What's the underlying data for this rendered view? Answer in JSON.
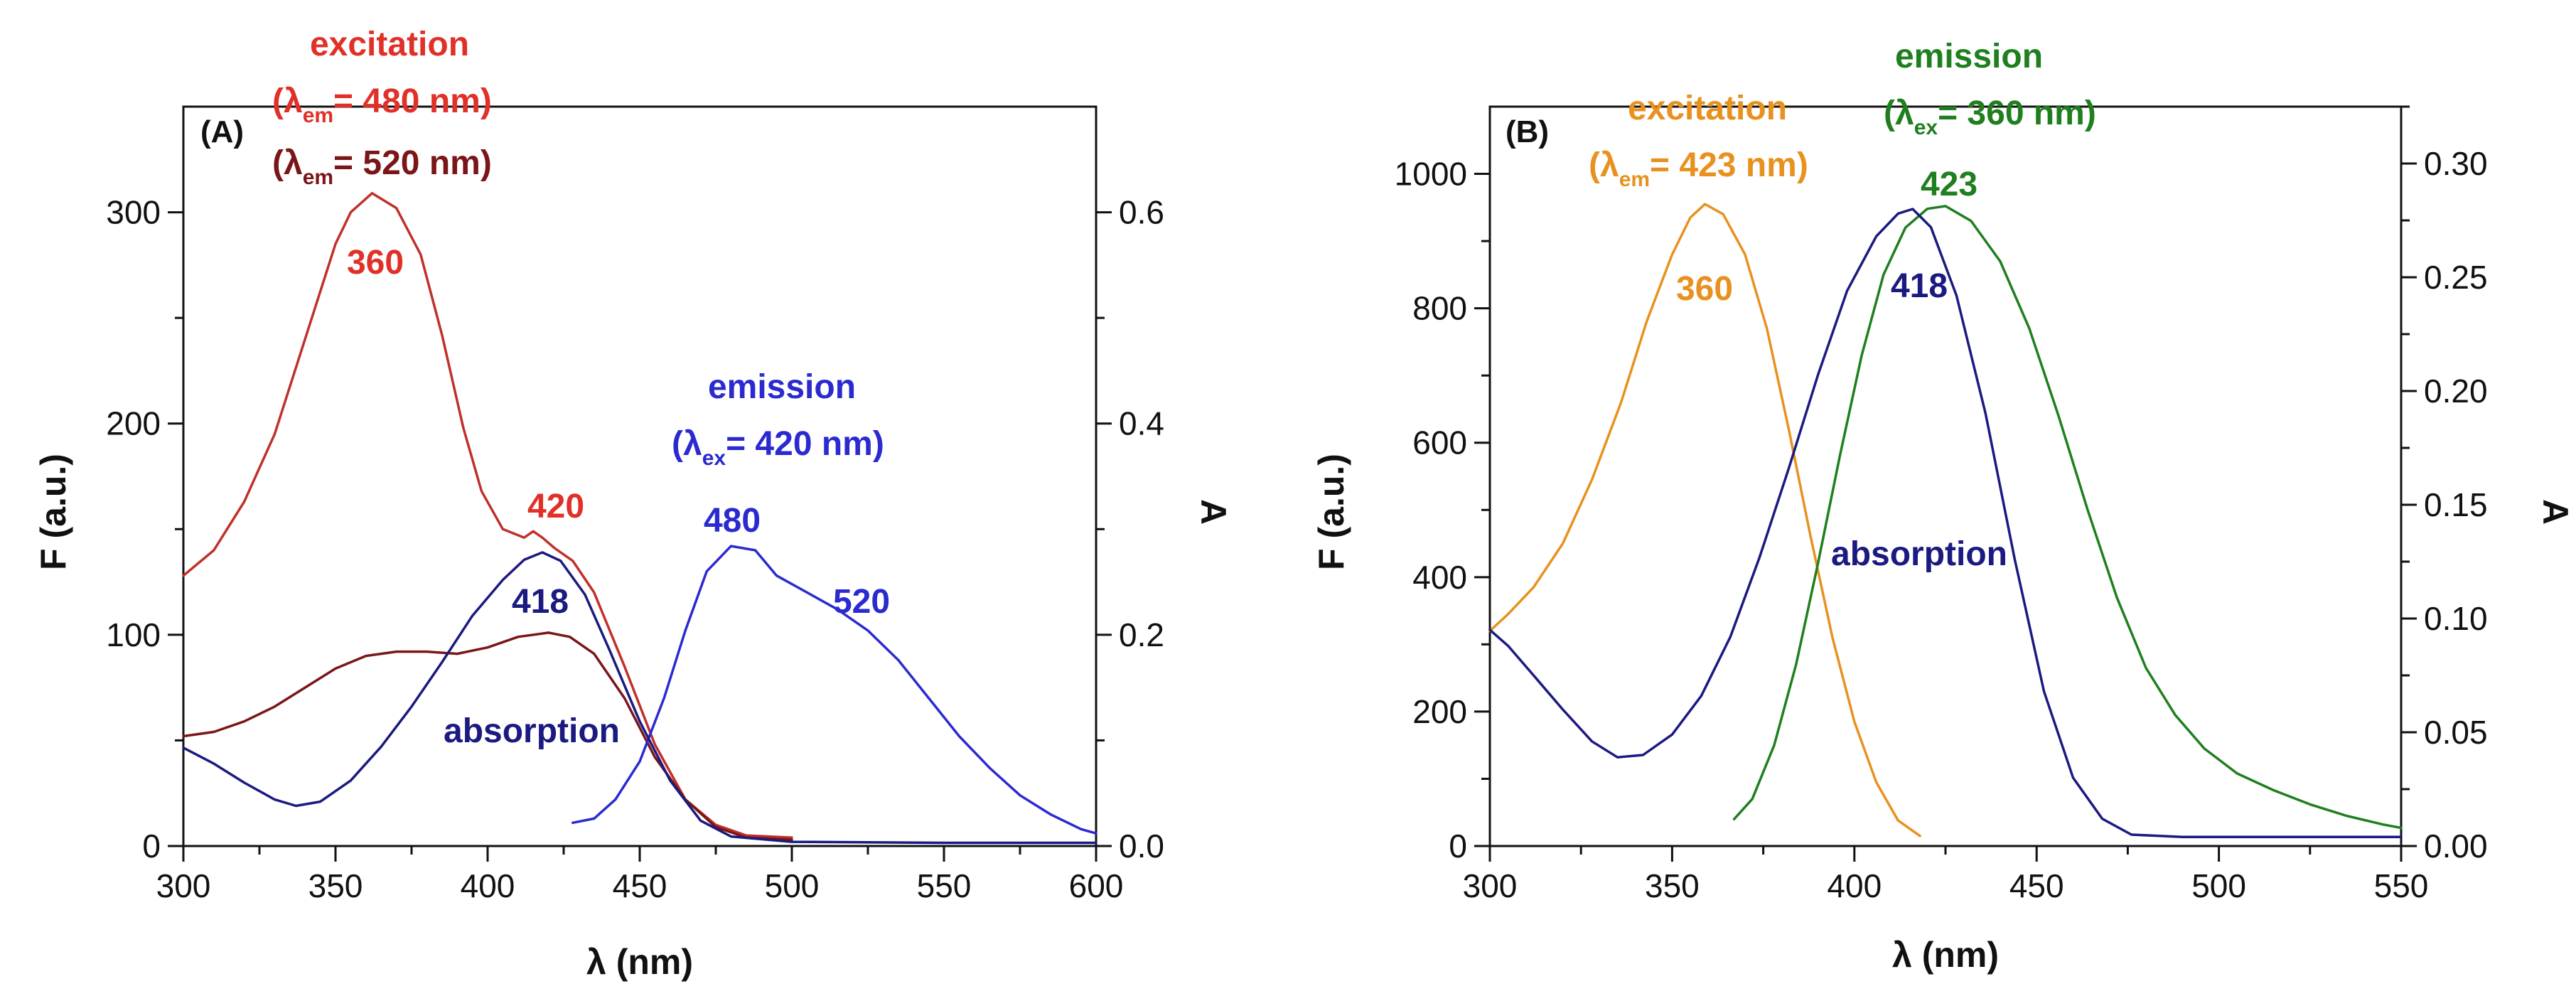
{
  "chart_data": [
    {
      "type": "line",
      "panel": "(A)",
      "xlabel": "λ (nm)",
      "ylabel": "F (a.u.)",
      "y2label": "A",
      "xlim": [
        300,
        600
      ],
      "ylim": [
        0,
        350
      ],
      "y2lim": [
        0,
        0.7
      ],
      "xticks": [
        300,
        350,
        400,
        450,
        500,
        550,
        600
      ],
      "yticks": [
        0,
        100,
        200,
        300
      ],
      "y2ticks": [
        0.0,
        0.2,
        0.4,
        0.6
      ],
      "y2ticklabels": [
        "0.0",
        "0.2",
        "0.4",
        "0.6"
      ],
      "series": [
        {
          "name": "excitation (λem = 480 nm)",
          "axis": "left",
          "color": "#c0302a",
          "points": [
            [
              300,
              128
            ],
            [
              310,
              140
            ],
            [
              320,
              163
            ],
            [
              330,
              195
            ],
            [
              340,
              240
            ],
            [
              350,
              285
            ],
            [
              355,
              300
            ],
            [
              362,
              309
            ],
            [
              370,
              302
            ],
            [
              378,
              280
            ],
            [
              385,
              242
            ],
            [
              392,
              198
            ],
            [
              398,
              168
            ],
            [
              405,
              150
            ],
            [
              412,
              146
            ],
            [
              415,
              149
            ],
            [
              418,
              146
            ],
            [
              422,
              141
            ],
            [
              428,
              135
            ],
            [
              435,
              120
            ],
            [
              445,
              85
            ],
            [
              455,
              48
            ],
            [
              465,
              22
            ],
            [
              475,
              10
            ],
            [
              485,
              5
            ],
            [
              500,
              4
            ]
          ]
        },
        {
          "name": "excitation (λem = 520 nm)",
          "axis": "left",
          "color": "#7a1618",
          "points": [
            [
              300,
              52
            ],
            [
              310,
              54
            ],
            [
              320,
              59
            ],
            [
              330,
              66
            ],
            [
              340,
              75
            ],
            [
              350,
              84
            ],
            [
              360,
              90
            ],
            [
              370,
              92
            ],
            [
              380,
              92
            ],
            [
              390,
              91
            ],
            [
              400,
              94
            ],
            [
              410,
              99
            ],
            [
              420,
              101
            ],
            [
              427,
              99
            ],
            [
              435,
              91
            ],
            [
              445,
              70
            ],
            [
              455,
              42
            ],
            [
              465,
              22
            ],
            [
              475,
              9
            ],
            [
              485,
              4
            ],
            [
              500,
              3
            ]
          ]
        },
        {
          "name": "emission (λex = 420 nm)",
          "axis": "left",
          "color": "#2a2ad0",
          "points": [
            [
              428,
              11
            ],
            [
              435,
              13
            ],
            [
              442,
              22
            ],
            [
              450,
              40
            ],
            [
              458,
              70
            ],
            [
              465,
              102
            ],
            [
              472,
              130
            ],
            [
              480,
              142
            ],
            [
              488,
              140
            ],
            [
              495,
              128
            ],
            [
              505,
              120
            ],
            [
              515,
              112
            ],
            [
              525,
              102
            ],
            [
              535,
              88
            ],
            [
              545,
              70
            ],
            [
              555,
              52
            ],
            [
              565,
              37
            ],
            [
              575,
              24
            ],
            [
              585,
              15
            ],
            [
              595,
              8
            ],
            [
              600,
              6
            ]
          ]
        },
        {
          "name": "absorption",
          "axis": "right",
          "color": "#1a1a80",
          "points": [
            [
              300,
              0.093
            ],
            [
              310,
              0.078
            ],
            [
              320,
              0.06
            ],
            [
              330,
              0.044
            ],
            [
              337,
              0.038
            ],
            [
              345,
              0.042
            ],
            [
              355,
              0.062
            ],
            [
              365,
              0.094
            ],
            [
              375,
              0.132
            ],
            [
              385,
              0.174
            ],
            [
              395,
              0.218
            ],
            [
              405,
              0.252
            ],
            [
              412,
              0.271
            ],
            [
              418,
              0.278
            ],
            [
              424,
              0.27
            ],
            [
              432,
              0.238
            ],
            [
              440,
              0.186
            ],
            [
              450,
              0.118
            ],
            [
              460,
              0.062
            ],
            [
              470,
              0.024
            ],
            [
              480,
              0.009
            ],
            [
              500,
              0.004
            ],
            [
              550,
              0.003
            ],
            [
              600,
              0.003
            ]
          ]
        }
      ],
      "annotations": {
        "excitation_title": "excitation",
        "excitation_em480": "= 480 nm)",
        "excitation_em520": "= 520 nm)",
        "emission_title": "emission",
        "emission_ex": "= 420 nm)",
        "absorption": "absorption",
        "peak_360": "360",
        "peak_420": "420",
        "peak_418": "418",
        "peak_480": "480",
        "peak_520": "520",
        "sub_em": "em",
        "sub_ex": "ex",
        "lambda_open": "(λ"
      }
    },
    {
      "type": "line",
      "panel": "(B)",
      "xlabel": "λ (nm)",
      "ylabel": "F (a.u.)",
      "y2label": "A",
      "xlim": [
        300,
        550
      ],
      "ylim": [
        0,
        1100
      ],
      "y2lim": [
        0,
        0.325
      ],
      "xticks": [
        300,
        350,
        400,
        450,
        500,
        550
      ],
      "yticks": [
        0,
        200,
        400,
        600,
        800,
        1000
      ],
      "y2ticks": [
        0.0,
        0.05,
        0.1,
        0.15,
        0.2,
        0.25,
        0.3
      ],
      "y2ticklabels": [
        "0.00",
        "0.05",
        "0.10",
        "0.15",
        "0.20",
        "0.25",
        "0.30"
      ],
      "series": [
        {
          "name": "excitation (λem = 423 nm)",
          "axis": "left",
          "color": "#e8911f",
          "points": [
            [
              300,
              320
            ],
            [
              305,
              345
            ],
            [
              312,
              385
            ],
            [
              320,
              450
            ],
            [
              328,
              545
            ],
            [
              336,
              660
            ],
            [
              343,
              780
            ],
            [
              350,
              880
            ],
            [
              355,
              935
            ],
            [
              359,
              955
            ],
            [
              364,
              940
            ],
            [
              370,
              880
            ],
            [
              376,
              770
            ],
            [
              382,
              620
            ],
            [
              388,
              460
            ],
            [
              394,
              310
            ],
            [
              400,
              185
            ],
            [
              406,
              95
            ],
            [
              412,
              38
            ],
            [
              418,
              15
            ]
          ]
        },
        {
          "name": "emission (λex = 360 nm)",
          "axis": "left",
          "color": "#1f7f1f",
          "points": [
            [
              367,
              40
            ],
            [
              372,
              70
            ],
            [
              378,
              150
            ],
            [
              384,
              270
            ],
            [
              390,
              420
            ],
            [
              396,
              580
            ],
            [
              402,
              730
            ],
            [
              408,
              850
            ],
            [
              414,
              920
            ],
            [
              420,
              948
            ],
            [
              425,
              952
            ],
            [
              432,
              930
            ],
            [
              440,
              870
            ],
            [
              448,
              770
            ],
            [
              456,
              640
            ],
            [
              464,
              500
            ],
            [
              472,
              370
            ],
            [
              480,
              265
            ],
            [
              488,
              195
            ],
            [
              496,
              145
            ],
            [
              505,
              108
            ],
            [
              515,
              83
            ],
            [
              525,
              62
            ],
            [
              535,
              45
            ],
            [
              545,
              32
            ],
            [
              550,
              27
            ]
          ]
        },
        {
          "name": "absorption",
          "axis": "right",
          "color": "#1a1a80",
          "points": [
            [
              300,
              0.095
            ],
            [
              305,
              0.088
            ],
            [
              312,
              0.075
            ],
            [
              320,
              0.06
            ],
            [
              328,
              0.046
            ],
            [
              335,
              0.039
            ],
            [
              342,
              0.04
            ],
            [
              350,
              0.049
            ],
            [
              358,
              0.066
            ],
            [
              366,
              0.092
            ],
            [
              374,
              0.127
            ],
            [
              382,
              0.166
            ],
            [
              390,
              0.207
            ],
            [
              398,
              0.244
            ],
            [
              406,
              0.268
            ],
            [
              412,
              0.278
            ],
            [
              416,
              0.28
            ],
            [
              421,
              0.272
            ],
            [
              428,
              0.242
            ],
            [
              436,
              0.19
            ],
            [
              444,
              0.126
            ],
            [
              452,
              0.068
            ],
            [
              460,
              0.03
            ],
            [
              468,
              0.012
            ],
            [
              476,
              0.005
            ],
            [
              490,
              0.004
            ],
            [
              520,
              0.004
            ],
            [
              550,
              0.004
            ]
          ]
        }
      ],
      "annotations": {
        "excitation_title": "excitation",
        "excitation_em": "= 423 nm)",
        "emission_title": "emission",
        "emission_ex": "= 360 nm)",
        "absorption": "absorption",
        "peak_360": "360",
        "peak_418": "418",
        "peak_423": "423",
        "sub_em": "em",
        "sub_ex": "ex",
        "lambda_open": "(λ"
      }
    }
  ]
}
